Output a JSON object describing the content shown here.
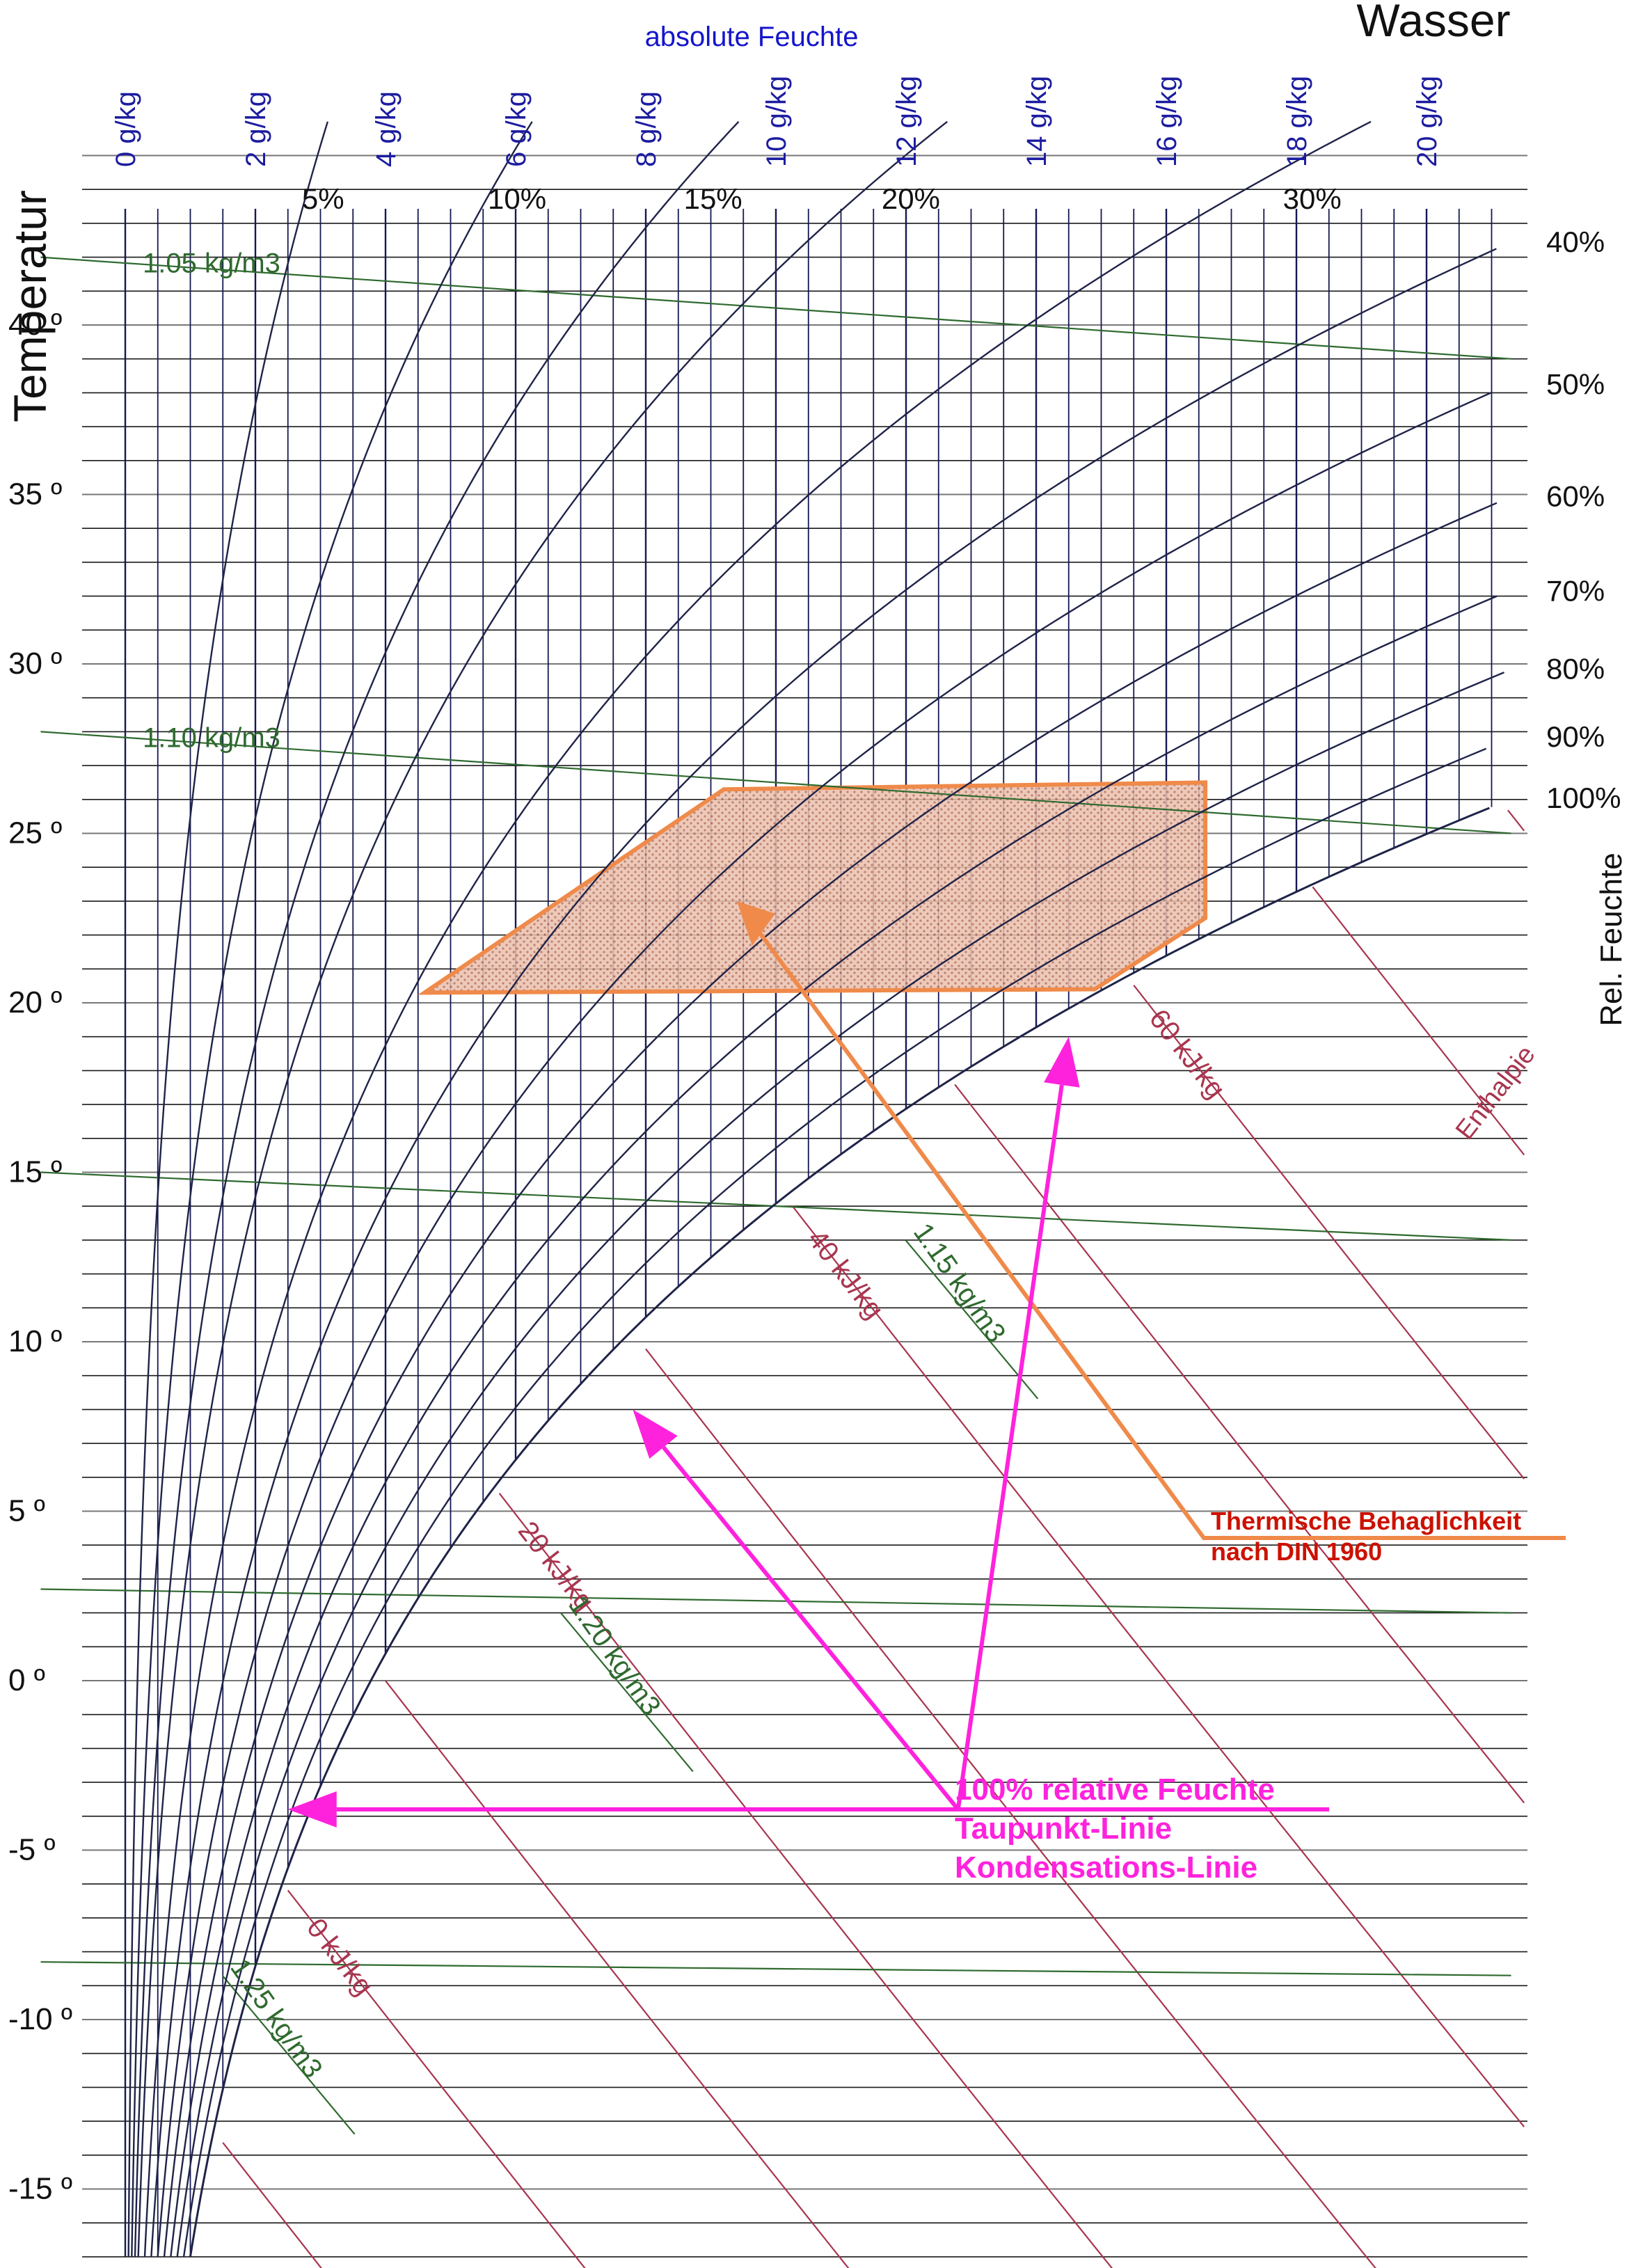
{
  "chart_data": {
    "type": "line",
    "title": "",
    "header_left": "absolute Feuchte",
    "header_right": "Wasser",
    "ylabel": "Temperatur",
    "right_label": "Rel. Feuchte",
    "enthalpy_label": "Enthalpie",
    "ylim": [
      -17,
      45
    ],
    "xlim": [
      0,
      21
    ],
    "grid": true,
    "y_ticks": [
      {
        "value": 40,
        "label": "40 º"
      },
      {
        "value": 35,
        "label": "35 º"
      },
      {
        "value": 30,
        "label": "30 º"
      },
      {
        "value": 25,
        "label": "25 º"
      },
      {
        "value": 20,
        "label": "20 º"
      },
      {
        "value": 15,
        "label": "15 º"
      },
      {
        "value": 10,
        "label": "10 º"
      },
      {
        "value": 5,
        "label": "5 º"
      },
      {
        "value": 0,
        "label": "0 º"
      },
      {
        "value": -5,
        "label": "-5 º"
      },
      {
        "value": -10,
        "label": "-10 º"
      },
      {
        "value": -15,
        "label": "-15 º"
      }
    ],
    "x_ticks": [
      {
        "value": 0,
        "label": "0 g/kg"
      },
      {
        "value": 2,
        "label": "2 g/kg"
      },
      {
        "value": 4,
        "label": "4 g/kg"
      },
      {
        "value": 6,
        "label": "6 g/kg"
      },
      {
        "value": 8,
        "label": "8 g/kg"
      },
      {
        "value": 10,
        "label": "10 g/kg"
      },
      {
        "value": 12,
        "label": "12 g/kg"
      },
      {
        "value": 14,
        "label": "14 g/kg"
      },
      {
        "value": 16,
        "label": "16 g/kg"
      },
      {
        "value": 18,
        "label": "18 g/kg"
      },
      {
        "value": 20,
        "label": "20 g/kg"
      }
    ],
    "rh_curves": [
      {
        "rh": 5,
        "label": "5%"
      },
      {
        "rh": 10,
        "label": "10%"
      },
      {
        "rh": 15,
        "label": "15%"
      },
      {
        "rh": 20,
        "label": "20%"
      },
      {
        "rh": 30,
        "label": "30%"
      },
      {
        "rh": 40,
        "label": "40%"
      },
      {
        "rh": 50,
        "label": "50%"
      },
      {
        "rh": 60,
        "label": "60%"
      },
      {
        "rh": 70,
        "label": "70%"
      },
      {
        "rh": 80,
        "label": "80%"
      },
      {
        "rh": 90,
        "label": "90%"
      },
      {
        "rh": 100,
        "label": "100%"
      }
    ],
    "enthalpy_lines": [
      {
        "h": 0,
        "label": "0 kJ/kg"
      },
      {
        "h": 20,
        "label": "20 kJ/kg"
      },
      {
        "h": 40,
        "label": "40 kJ/kg"
      },
      {
        "h": 60,
        "label": "60 kJ/kg"
      }
    ],
    "density_lines": [
      {
        "rho": 1.05,
        "label": "1.05 kg/m3",
        "t_left": 42,
        "t_right": 39
      },
      {
        "rho": 1.1,
        "label": "1.10 kg/m3",
        "t_left": 28,
        "t_right": 25
      },
      {
        "rho": 1.15,
        "label": "1.15 kg/m3",
        "t_left": 15,
        "t_right": 13
      },
      {
        "rho": 1.2,
        "label": "1.20 kg/m3",
        "t_left": 2.7,
        "t_right": 2
      },
      {
        "rho": 1.25,
        "label": "1.25 kg/m3",
        "t_left": -8.3,
        "t_right": -8.7
      }
    ],
    "comfort_zone": {
      "polygon": [
        [
          9.2,
          26.3
        ],
        [
          16.6,
          26.5
        ],
        [
          16.6,
          22.5
        ],
        [
          14.9,
          20.4
        ],
        [
          4.6,
          20.3
        ]
      ],
      "arrow_tip": [
        9.4,
        23.0
      ]
    },
    "annotations": {
      "comfort": [
        "Thermische Behaglichkeit",
        "nach DIN 1960"
      ],
      "saturation": [
        "100% relative Feuchte",
        "Taupunkt-Linie",
        "Kondensations-Linie"
      ],
      "saturation_origin": [
        12.8,
        -3.8
      ],
      "saturation_targets": [
        [
          2.5,
          -3.8
        ],
        [
          7.8,
          8.0
        ],
        [
          14.5,
          19.0
        ]
      ]
    },
    "colors": {
      "vertical_grid": "#151852",
      "horizontal_grid": "#1a1a1a",
      "rh_curve": "#1f2348",
      "enthalpy": "#a8354f",
      "density": "#2f6a2f",
      "x_tick": "#1c1ca0",
      "header": "#1515cc",
      "comfort_stroke": "#ef8a4a",
      "comfort_fill": "#e7b29c",
      "comfort_text": "#cc1100",
      "saturation": "#ff22dd",
      "text": "#111111"
    }
  }
}
